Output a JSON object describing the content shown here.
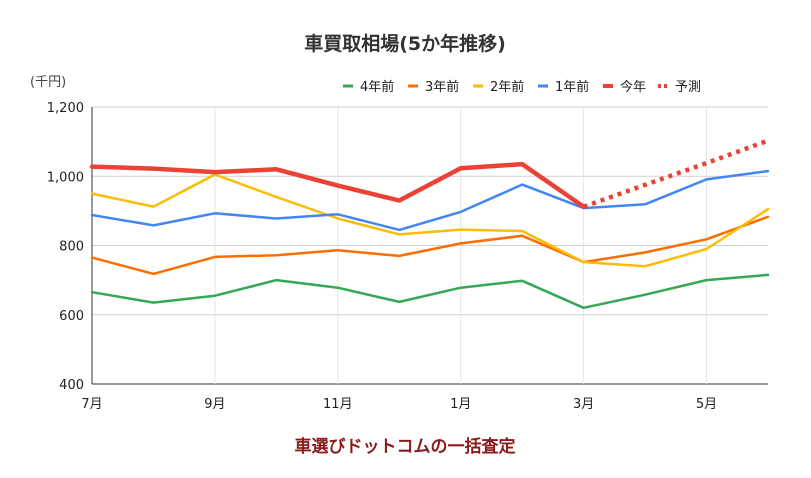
{
  "chart_data": {
    "type": "line",
    "title": "車買取相場(5か年推移)",
    "unit_label": "(千円)",
    "source_label": "車選びドットコムの一括査定",
    "x_ticks": [
      "7月",
      "9月",
      "11月",
      "1月",
      "3月",
      "5月"
    ],
    "y_ticks": [
      "1,200",
      "1,000",
      "800",
      "600",
      "400"
    ],
    "ylim": [
      400,
      1200
    ],
    "grid": true,
    "legend_position": "top-right",
    "series": [
      {
        "name": "4年前",
        "color": "#34a853",
        "style": "solid",
        "values": [
          665,
          635,
          655,
          700,
          678,
          637,
          678,
          698,
          620,
          658,
          700,
          715
        ]
      },
      {
        "name": "3年前",
        "color": "#ff6d01",
        "style": "solid",
        "values": [
          765,
          718,
          767,
          772,
          786,
          770,
          806,
          828,
          752,
          780,
          818,
          883
        ]
      },
      {
        "name": "2年前",
        "color": "#fbbc04",
        "style": "solid",
        "values": [
          950,
          912,
          1005,
          940,
          878,
          832,
          846,
          842,
          752,
          740,
          790,
          905
        ]
      },
      {
        "name": "1年前",
        "color": "#4285f4",
        "style": "solid",
        "values": [
          888,
          858,
          893,
          878,
          890,
          845,
          897,
          976,
          908,
          919,
          991,
          1015
        ]
      },
      {
        "name": "今年",
        "color": "#ea4335",
        "style": "thick",
        "values": [
          1028,
          1022,
          1012,
          1020,
          973,
          930,
          1023,
          1035,
          912,
          null,
          null,
          null
        ]
      },
      {
        "name": "予測",
        "color": "#ea4335",
        "style": "dotted",
        "values": [
          null,
          null,
          null,
          null,
          null,
          null,
          null,
          null,
          912,
          975,
          1038,
          1103
        ]
      }
    ]
  }
}
